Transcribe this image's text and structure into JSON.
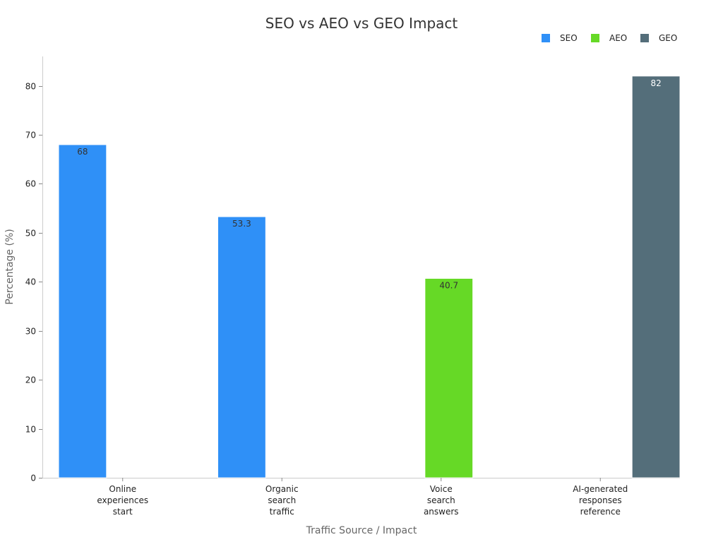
{
  "chart_data": {
    "type": "bar",
    "title": "SEO vs AEO vs GEO Impact",
    "xlabel": "Traffic Source / Impact",
    "ylabel": "Percentage (%)",
    "ylim": [
      0,
      86
    ],
    "yticks": [
      0,
      10,
      20,
      30,
      40,
      50,
      60,
      70,
      80
    ],
    "grid": false,
    "legend_position": "top-right",
    "categories": [
      [
        "Online",
        "experiences",
        "start"
      ],
      [
        "Organic",
        "search",
        "traffic"
      ],
      [
        "Voice",
        "search",
        "answers"
      ],
      [
        "AI-generated",
        "responses",
        "reference"
      ]
    ],
    "series": [
      {
        "name": "SEO",
        "color": "#2f90f7",
        "label_color": "#333333",
        "values": [
          68,
          53.3,
          null,
          null
        ]
      },
      {
        "name": "AEO",
        "color": "#66d926",
        "label_color": "#333333",
        "values": [
          null,
          null,
          40.7,
          null
        ]
      },
      {
        "name": "GEO",
        "color": "#546e7a",
        "label_color": "#ffffff",
        "values": [
          null,
          null,
          null,
          82
        ]
      }
    ]
  }
}
